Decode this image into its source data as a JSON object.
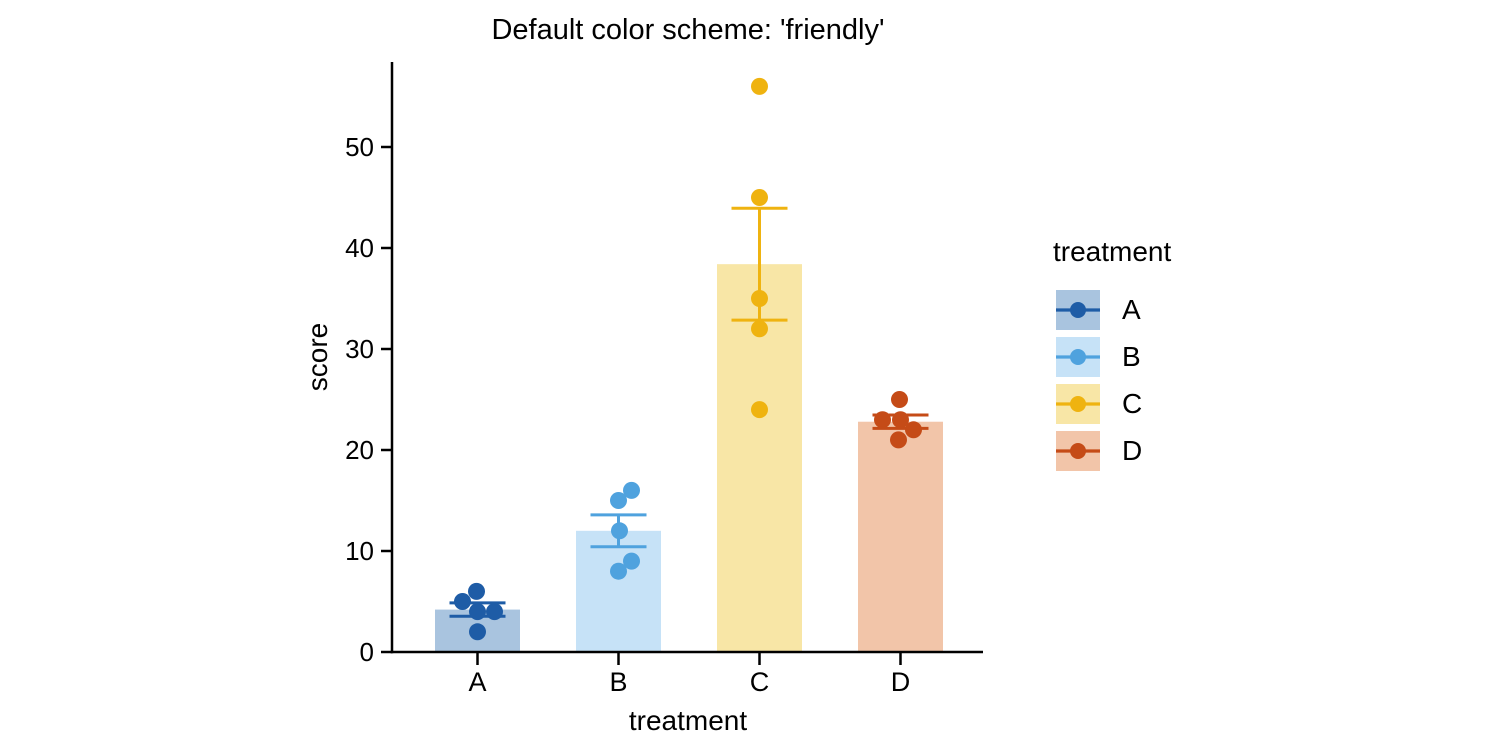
{
  "chart_data": {
    "type": "bar",
    "title": "Default color scheme: 'friendly'",
    "xlabel": "treatment",
    "ylabel": "score",
    "ylim": [
      0,
      58
    ],
    "yticks": [
      0,
      10,
      20,
      30,
      40,
      50
    ],
    "categories": [
      "A",
      "B",
      "C",
      "D"
    ],
    "grid": false,
    "legend": {
      "title": "treatment",
      "position": "right",
      "entries": [
        "A",
        "B",
        "C",
        "D"
      ]
    },
    "error_bar": "mean ± SE",
    "groups": [
      {
        "label": "A",
        "accent": "#1e5ca6",
        "bar_fill": "#a9c4df",
        "mean": 4.2,
        "se": 0.66,
        "values": [
          6,
          5,
          4,
          4,
          2
        ],
        "jitter": [
          -1,
          -15,
          0,
          17,
          0
        ]
      },
      {
        "label": "B",
        "accent": "#4fa2de",
        "bar_fill": "#c6e2f7",
        "mean": 12,
        "se": 1.58,
        "values": [
          16,
          15,
          12,
          9,
          8
        ],
        "jitter": [
          13,
          0,
          1,
          13,
          0
        ]
      },
      {
        "label": "C",
        "accent": "#efb310",
        "bar_fill": "#f8e6a6",
        "mean": 38.4,
        "se": 5.54,
        "values": [
          56,
          45,
          35,
          32,
          24
        ],
        "jitter": [
          0,
          0,
          0,
          0,
          0
        ]
      },
      {
        "label": "D",
        "accent": "#c54b17",
        "bar_fill": "#f2c5a9",
        "mean": 22.8,
        "se": 0.66,
        "values": [
          25,
          23,
          23,
          22,
          21
        ],
        "jitter": [
          -1,
          -18,
          0,
          13,
          -2
        ]
      }
    ]
  }
}
